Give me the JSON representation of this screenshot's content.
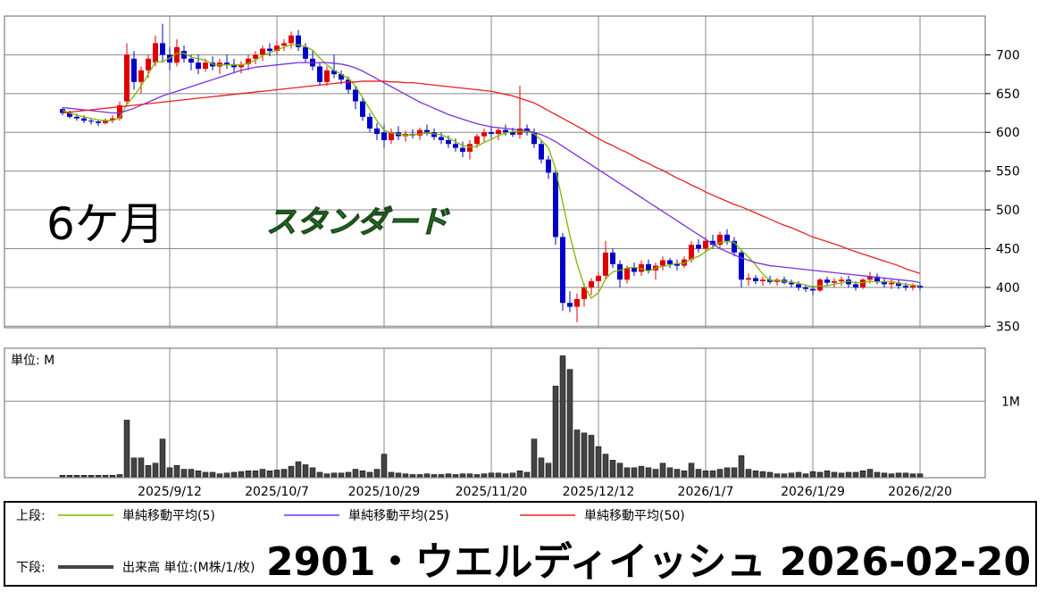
{
  "chart_data": [
    {
      "type": "candlestick",
      "title": "2901・ウエルディイッシュ 2026-02-20",
      "annotations": [
        "6ケ月",
        "スタンダード"
      ],
      "legend_label": "上段:",
      "categories": [
        null,
        null,
        null,
        null,
        null,
        null,
        null,
        null,
        null,
        null,
        null,
        null,
        null,
        null,
        null,
        "2025/9/12",
        null,
        null,
        null,
        null,
        null,
        null,
        null,
        null,
        null,
        null,
        null,
        null,
        null,
        null,
        "2025/10/7",
        null,
        null,
        null,
        null,
        null,
        null,
        null,
        null,
        null,
        null,
        null,
        null,
        null,
        null,
        "2025/10/29",
        null,
        null,
        null,
        null,
        null,
        null,
        null,
        null,
        null,
        null,
        null,
        null,
        null,
        null,
        "2025/11/20",
        null,
        null,
        null,
        null,
        null,
        null,
        null,
        null,
        null,
        null,
        null,
        null,
        null,
        null,
        "2025/12/12",
        null,
        null,
        null,
        null,
        null,
        null,
        null,
        null,
        null,
        null,
        null,
        null,
        null,
        null,
        "2026/1/7",
        null,
        null,
        null,
        null,
        null,
        null,
        null,
        null,
        null,
        null,
        null,
        null,
        null,
        null,
        "2026/1/29",
        null,
        null,
        null,
        null,
        null,
        null,
        null,
        null,
        null,
        null,
        null,
        null,
        null,
        null,
        "2026/2/20"
      ],
      "open": [
        630,
        625,
        620,
        618,
        615,
        614,
        612,
        616,
        618,
        640,
        695,
        665,
        680,
        690,
        715,
        700,
        690,
        705,
        695,
        690,
        682,
        690,
        685,
        690,
        688,
        684,
        688,
        695,
        700,
        708,
        705,
        712,
        715,
        725,
        710,
        695,
        685,
        665,
        680,
        675,
        668,
        655,
        640,
        620,
        605,
        600,
        590,
        600,
        595,
        598,
        596,
        603,
        600,
        594,
        590,
        585,
        580,
        575,
        585,
        595,
        600,
        598,
        603,
        600,
        597,
        605,
        600,
        585,
        565,
        548,
        465,
        380,
        375,
        385,
        400,
        408,
        415,
        445,
        430,
        410,
        425,
        420,
        430,
        422,
        428,
        435,
        430,
        428,
        436,
        455,
        450,
        460,
        455,
        468,
        460,
        445,
        410,
        412,
        408,
        410,
        407,
        410,
        406,
        404,
        400,
        398,
        396,
        410,
        406,
        408,
        410,
        404,
        400,
        410,
        414,
        408,
        404,
        406,
        402,
        400,
        402
      ],
      "high": [
        632,
        628,
        624,
        622,
        618,
        616,
        618,
        622,
        640,
        715,
        705,
        685,
        700,
        725,
        740,
        710,
        720,
        712,
        700,
        700,
        695,
        698,
        695,
        700,
        695,
        692,
        700,
        705,
        712,
        715,
        718,
        720,
        730,
        732,
        715,
        705,
        690,
        685,
        700,
        680,
        672,
        660,
        645,
        625,
        612,
        610,
        605,
        608,
        602,
        604,
        606,
        610,
        605,
        600,
        596,
        592,
        588,
        590,
        598,
        605,
        608,
        606,
        610,
        606,
        660,
        610,
        605,
        590,
        570,
        552,
        470,
        395,
        392,
        405,
        412,
        420,
        460,
        450,
        435,
        428,
        432,
        435,
        436,
        432,
        440,
        438,
        436,
        440,
        460,
        462,
        465,
        468,
        472,
        475,
        465,
        448,
        418,
        416,
        414,
        415,
        412,
        414,
        410,
        408,
        404,
        402,
        412,
        414,
        412,
        414,
        415,
        408,
        412,
        420,
        418,
        412,
        410,
        410,
        406,
        405,
        405
      ],
      "low": [
        622,
        618,
        615,
        612,
        610,
        608,
        610,
        612,
        615,
        635,
        655,
        650,
        670,
        685,
        690,
        680,
        685,
        690,
        680,
        675,
        678,
        680,
        675,
        682,
        678,
        676,
        680,
        688,
        692,
        698,
        700,
        705,
        708,
        705,
        690,
        680,
        660,
        660,
        670,
        662,
        650,
        630,
        615,
        600,
        590,
        580,
        585,
        590,
        588,
        592,
        590,
        596,
        590,
        585,
        580,
        575,
        568,
        565,
        580,
        588,
        592,
        590,
        596,
        594,
        592,
        596,
        580,
        560,
        540,
        455,
        370,
        368,
        355,
        375,
        390,
        400,
        410,
        425,
        400,
        405,
        415,
        415,
        418,
        410,
        422,
        425,
        422,
        425,
        432,
        445,
        446,
        450,
        450,
        455,
        440,
        400,
        402,
        404,
        402,
        404,
        402,
        404,
        400,
        396,
        394,
        390,
        394,
        402,
        400,
        402,
        400,
        396,
        398,
        405,
        404,
        400,
        398,
        398,
        396,
        396,
        396
      ],
      "close": [
        625,
        620,
        618,
        615,
        614,
        612,
        616,
        618,
        635,
        700,
        665,
        680,
        695,
        715,
        700,
        690,
        710,
        695,
        690,
        682,
        690,
        685,
        690,
        688,
        684,
        688,
        695,
        700,
        708,
        705,
        712,
        715,
        725,
        710,
        695,
        685,
        665,
        680,
        675,
        668,
        655,
        640,
        620,
        605,
        598,
        590,
        600,
        595,
        598,
        596,
        603,
        600,
        594,
        590,
        585,
        580,
        575,
        585,
        595,
        600,
        598,
        603,
        600,
        597,
        605,
        600,
        585,
        565,
        548,
        465,
        380,
        375,
        385,
        400,
        408,
        415,
        445,
        430,
        410,
        425,
        420,
        430,
        422,
        428,
        435,
        430,
        428,
        436,
        455,
        450,
        460,
        455,
        468,
        460,
        445,
        410,
        412,
        408,
        410,
        407,
        410,
        406,
        404,
        400,
        398,
        396,
        410,
        406,
        408,
        410,
        404,
        400,
        410,
        414,
        408,
        404,
        406,
        402,
        400,
        402,
        400
      ],
      "up_color": "#e00000",
      "down_color": "#0000c8",
      "series": [
        {
          "name": "単純移動平均(5)",
          "color": "#7cb800",
          "values": [
            628,
            625,
            622,
            620,
            618,
            616,
            615,
            615,
            619,
            636,
            647,
            660,
            675,
            691,
            691,
            696,
            702,
            702,
            697,
            695,
            693,
            688,
            687,
            687,
            687,
            687,
            689,
            693,
            699,
            703,
            706,
            710,
            713,
            713,
            711,
            706,
            696,
            687,
            680,
            675,
            669,
            660,
            645,
            630,
            615,
            603,
            599,
            598,
            596,
            597,
            598,
            599,
            598,
            597,
            593,
            588,
            583,
            581,
            582,
            587,
            591,
            596,
            599,
            601,
            601,
            601,
            598,
            590,
            580,
            553,
            509,
            467,
            431,
            402,
            386,
            393,
            411,
            420,
            422,
            425,
            426,
            424,
            421,
            425,
            427,
            429,
            431,
            431,
            437,
            440,
            446,
            452,
            458,
            459,
            458,
            448,
            439,
            429,
            417,
            409,
            409,
            408,
            407,
            405,
            403,
            401,
            402,
            402,
            404,
            406,
            408,
            406,
            406,
            408,
            407,
            407,
            408,
            405,
            404,
            403,
            402
          ]
        },
        {
          "name": "単純移動平均(25)",
          "color": "#7a30e0",
          "values": [
            632,
            631,
            630,
            629,
            628,
            627,
            626,
            625,
            625,
            628,
            631,
            635,
            639,
            643,
            647,
            650,
            653,
            656,
            659,
            662,
            665,
            668,
            671,
            674,
            677,
            680,
            682,
            684,
            685,
            686,
            687,
            688,
            689,
            690,
            690,
            690,
            690,
            690,
            689,
            688,
            686,
            683,
            679,
            674,
            669,
            664,
            659,
            654,
            649,
            644,
            639,
            635,
            631,
            627,
            623,
            620,
            617,
            614,
            611,
            609,
            607,
            606,
            605,
            604,
            603,
            602,
            600,
            597,
            593,
            588,
            582,
            576,
            570,
            564,
            558,
            552,
            546,
            540,
            534,
            528,
            522,
            516,
            510,
            504,
            498,
            492,
            486,
            480,
            474,
            468,
            462,
            456,
            450,
            446,
            442,
            438,
            435,
            432,
            430,
            428,
            427,
            426,
            425,
            424,
            423,
            422,
            421,
            420,
            419,
            418,
            417,
            416,
            415,
            414,
            413,
            412,
            411,
            410,
            409,
            408,
            406
          ]
        },
        {
          "name": "単純移動平均(50)",
          "color": "#e82020",
          "values": [
            625,
            626,
            627,
            628,
            629,
            630,
            631,
            632,
            633,
            634,
            635,
            636,
            637,
            638,
            639,
            640,
            641,
            642,
            643,
            644,
            645,
            646,
            647,
            648,
            649,
            650,
            651,
            652,
            653,
            654,
            655,
            656,
            657,
            658,
            659,
            660,
            661,
            662,
            663,
            664,
            665,
            665,
            666,
            666,
            666,
            666,
            665,
            665,
            664,
            664,
            663,
            662,
            661,
            660,
            659,
            658,
            657,
            656,
            655,
            654,
            653,
            651,
            649,
            647,
            644,
            641,
            638,
            633,
            628,
            623,
            618,
            613,
            608,
            603,
            597,
            592,
            587,
            583,
            578,
            574,
            569,
            564,
            560,
            555,
            551,
            546,
            541,
            537,
            532,
            528,
            523,
            519,
            515,
            511,
            507,
            504,
            500,
            496,
            492,
            488,
            484,
            480,
            477,
            473,
            469,
            465,
            462,
            459,
            456,
            453,
            449,
            446,
            443,
            440,
            437,
            434,
            431,
            428,
            424,
            421,
            418
          ]
        }
      ],
      "ylim": [
        348,
        750
      ],
      "yticks": [
        350,
        400,
        450,
        500,
        550,
        600,
        650,
        700
      ],
      "grid": true
    },
    {
      "type": "bar",
      "unit_label": "単位: M",
      "legend_label": "下段:",
      "series": [
        {
          "name": "出来高 単位:(M株/1/枚)",
          "color": "#444444",
          "values": [
            0.02,
            0.02,
            0.02,
            0.02,
            0.02,
            0.02,
            0.02,
            0.02,
            0.03,
            0.75,
            0.25,
            0.25,
            0.15,
            0.18,
            0.5,
            0.12,
            0.15,
            0.1,
            0.1,
            0.08,
            0.06,
            0.06,
            0.04,
            0.05,
            0.06,
            0.07,
            0.08,
            0.08,
            0.1,
            0.08,
            0.09,
            0.1,
            0.14,
            0.2,
            0.16,
            0.12,
            0.06,
            0.04,
            0.05,
            0.05,
            0.06,
            0.1,
            0.08,
            0.06,
            0.1,
            0.3,
            0.06,
            0.05,
            0.04,
            0.03,
            0.03,
            0.04,
            0.03,
            0.03,
            0.04,
            0.03,
            0.04,
            0.04,
            0.03,
            0.04,
            0.05,
            0.05,
            0.04,
            0.05,
            0.08,
            0.06,
            0.5,
            0.25,
            0.18,
            1.2,
            1.6,
            1.42,
            0.62,
            0.58,
            0.55,
            0.4,
            0.3,
            0.22,
            0.18,
            0.12,
            0.12,
            0.14,
            0.12,
            0.1,
            0.18,
            0.12,
            0.1,
            0.08,
            0.18,
            0.1,
            0.08,
            0.08,
            0.1,
            0.12,
            0.12,
            0.28,
            0.1,
            0.08,
            0.07,
            0.06,
            0.04,
            0.04,
            0.05,
            0.06,
            0.04,
            0.07,
            0.06,
            0.08,
            0.06,
            0.05,
            0.06,
            0.06,
            0.08,
            0.1,
            0.06,
            0.05,
            0.04,
            0.05,
            0.05,
            0.04,
            0.04
          ]
        }
      ],
      "ylim": [
        0,
        1.7
      ],
      "yticks": [
        {
          "value": 1,
          "label": "1M"
        }
      ],
      "grid": true
    }
  ]
}
